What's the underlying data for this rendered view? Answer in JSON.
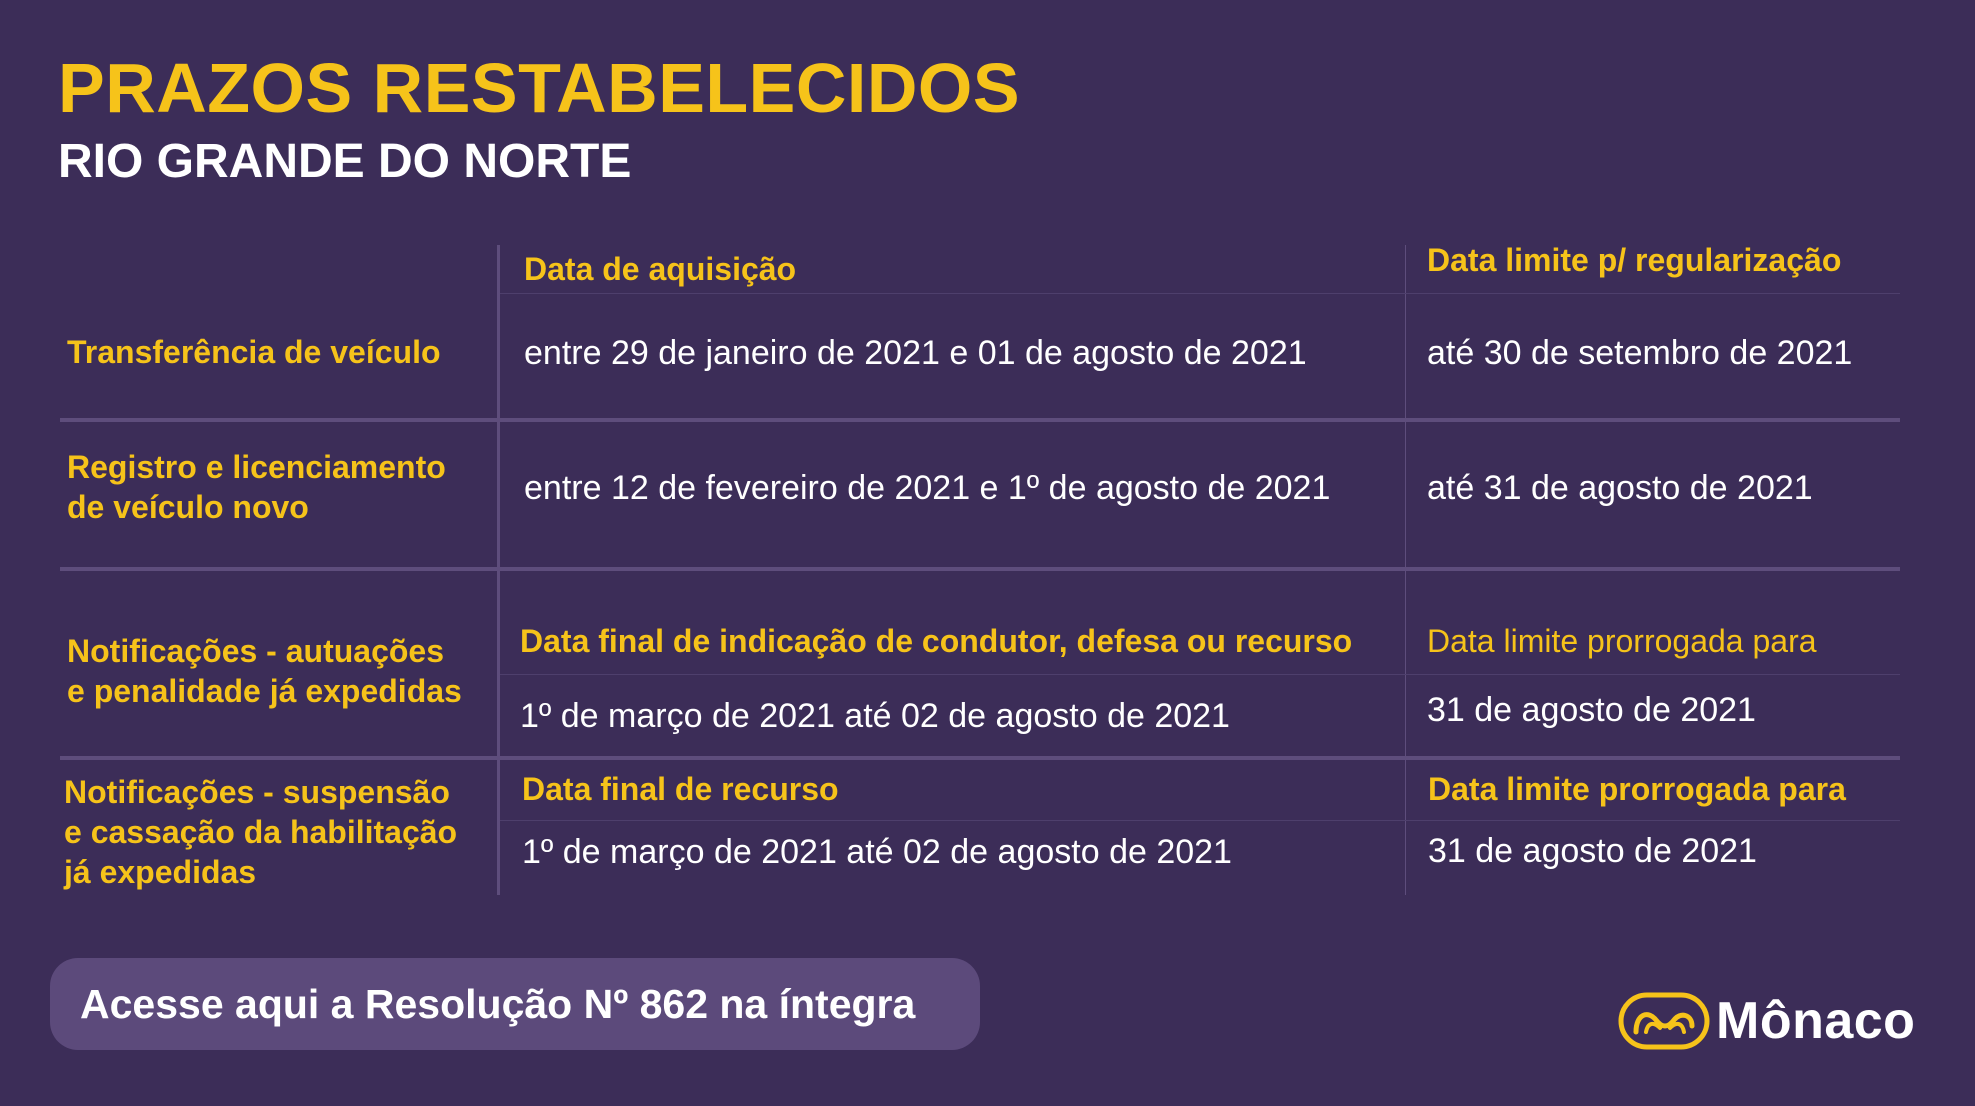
{
  "header": {
    "title": "PRAZOS RESTABELECIDOS",
    "subtitle": "RIO GRANDE DO NORTE"
  },
  "table": {
    "headers": {
      "col2": "Data de aquisição",
      "col3": "Data limite p/ regularização"
    },
    "rows": [
      {
        "label_lines": [
          "Transferência de veículo"
        ],
        "acquisition": "entre 29 de janeiro de 2021 e 01 de agosto de 2021",
        "deadline": "até 30 de setembro de 2021"
      },
      {
        "label_lines": [
          "Registro e licenciamento",
          "de veículo novo"
        ],
        "acquisition": "entre 12 de fevereiro de 2021 e 1º de agosto de 2021",
        "deadline": "até 31 de agosto de 2021"
      },
      {
        "label_lines": [
          "Notificações - autuações",
          "e penalidade já expedidas"
        ],
        "subheader_col2": "Data final de indicação de condutor, defesa ou recurso",
        "subheader_col3": "Data limite prorrogada para",
        "acquisition": "1º de março de 2021 até 02 de agosto de 2021",
        "deadline": "31 de agosto de 2021"
      },
      {
        "label_lines": [
          "Notificações - suspensão",
          "e cassação da habilitação",
          "já expedidas"
        ],
        "subheader_col2": "Data final de recurso",
        "subheader_col3": "Data limite prorrogada para",
        "acquisition": "1º de março de 2021 até 02 de agosto de 2021",
        "deadline": "31 de agosto de 2021"
      }
    ]
  },
  "cta": {
    "label": "Acesse aqui a Resolução Nº 862 na íntegra"
  },
  "logo": {
    "text": "Mônaco",
    "icon": "monaco-logo-icon"
  },
  "colors": {
    "background": "#3c2d58",
    "accent": "#f6c31a",
    "divider": "#5e4d7c",
    "button": "#5c4a7b"
  }
}
